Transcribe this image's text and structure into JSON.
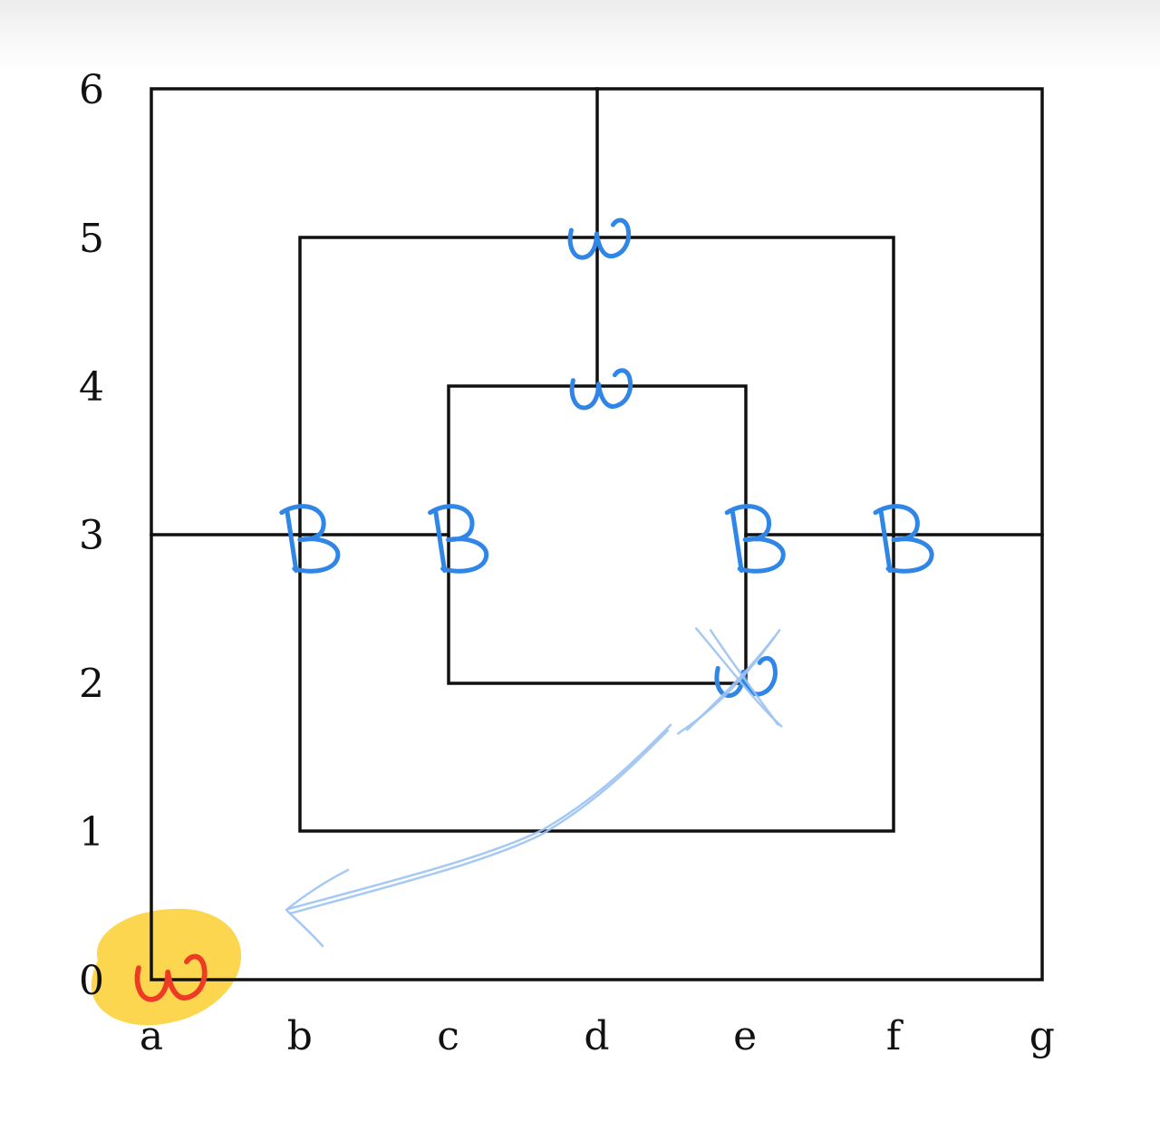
{
  "board": {
    "columns": [
      "a",
      "b",
      "c",
      "d",
      "e",
      "f",
      "g"
    ],
    "rows": [
      "0",
      "1",
      "2",
      "3",
      "4",
      "5",
      "6"
    ]
  },
  "pieces": [
    {
      "point": "d5",
      "label": "W",
      "color": "#2f86e6"
    },
    {
      "point": "d4",
      "label": "W",
      "color": "#2f86e6"
    },
    {
      "point": "b3",
      "label": "B",
      "color": "#2f86e6"
    },
    {
      "point": "c3",
      "label": "B",
      "color": "#2f86e6"
    },
    {
      "point": "e3",
      "label": "B",
      "color": "#2f86e6"
    },
    {
      "point": "f3",
      "label": "B",
      "color": "#2f86e6"
    },
    {
      "point": "e2",
      "label": "W",
      "color": "#2f86e6",
      "crossed_out": true
    },
    {
      "point": "a0",
      "label": "W",
      "color": "#ee3b25",
      "highlight": "#fcd33f"
    }
  ],
  "move": {
    "from": "e2",
    "to": "a0",
    "color": "#9cc3f2",
    "icon": "curved-arrow-icon"
  }
}
